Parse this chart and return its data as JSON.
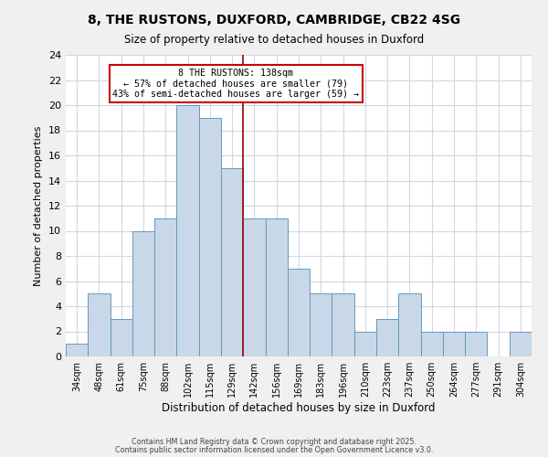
{
  "title": "8, THE RUSTONS, DUXFORD, CAMBRIDGE, CB22 4SG",
  "subtitle": "Size of property relative to detached houses in Duxford",
  "xlabel": "Distribution of detached houses by size in Duxford",
  "ylabel": "Number of detached properties",
  "bins": [
    "34sqm",
    "48sqm",
    "61sqm",
    "75sqm",
    "88sqm",
    "102sqm",
    "115sqm",
    "129sqm",
    "142sqm",
    "156sqm",
    "169sqm",
    "183sqm",
    "196sqm",
    "210sqm",
    "223sqm",
    "237sqm",
    "250sqm",
    "264sqm",
    "277sqm",
    "291sqm",
    "304sqm"
  ],
  "counts": [
    1,
    5,
    3,
    10,
    11,
    20,
    19,
    15,
    11,
    11,
    7,
    5,
    5,
    2,
    3,
    5,
    2,
    2,
    2,
    0,
    2
  ],
  "bar_color": "#c8d8e8",
  "bar_edge_color": "#6699bb",
  "marker_bin_index": 8,
  "marker_color": "#990000",
  "annotation_line1": "8 THE RUSTONS: 138sqm",
  "annotation_line2": "← 57% of detached houses are smaller (79)",
  "annotation_line3": "43% of semi-detached houses are larger (59) →",
  "annotation_box_color": "#cc0000",
  "ylim": [
    0,
    24
  ],
  "yticks": [
    0,
    2,
    4,
    6,
    8,
    10,
    12,
    14,
    16,
    18,
    20,
    22,
    24
  ],
  "footer1": "Contains HM Land Registry data © Crown copyright and database right 2025.",
  "footer2": "Contains public sector information licensed under the Open Government Licence v3.0.",
  "background_color": "#f0f0f0",
  "plot_background_color": "#ffffff",
  "grid_color": "#d0d8e0"
}
